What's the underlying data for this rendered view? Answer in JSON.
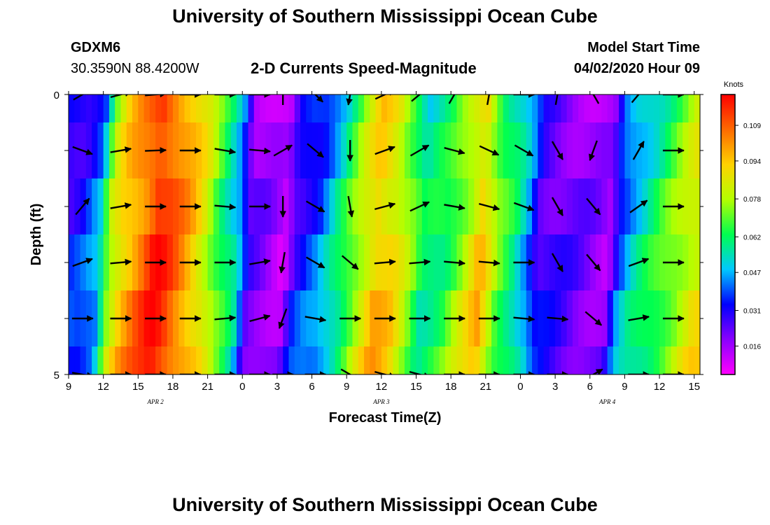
{
  "titles": {
    "top": "University of Southern Mississippi Ocean Cube",
    "bottom": "University of Southern Mississippi Ocean Cube"
  },
  "header": {
    "station": "GDXM6",
    "coords": "30.3590N 88.4200W",
    "subtitle": "2-D Currents Speed-Magnitude",
    "model_label": "Model Start Time",
    "model_time": "04/02/2020 Hour 09"
  },
  "chart_data": {
    "type": "heatmap",
    "title": "2-D Currents Speed-Magnitude",
    "xlabel": "Forecast Time(Z)",
    "ylabel": "Depth (ft)",
    "x_ticks": [
      "9",
      "12",
      "15",
      "18",
      "21",
      "0",
      "3",
      "6",
      "9",
      "12",
      "15",
      "18",
      "21",
      "0",
      "3",
      "6",
      "9",
      "12",
      "15"
    ],
    "x_hours": [
      9,
      12,
      15,
      18,
      21,
      24,
      27,
      30,
      33,
      36,
      39,
      42,
      45,
      48,
      51,
      54,
      57,
      60,
      63
    ],
    "date_labels": [
      {
        "label": "APR 2",
        "hour": 16.5
      },
      {
        "label": "APR 3",
        "hour": 36
      },
      {
        "label": "APR 4",
        "hour": 55.5
      }
    ],
    "y_ticks": [
      "0",
      "5"
    ],
    "ylim": [
      0,
      5
    ],
    "xlim": [
      9,
      63.5
    ],
    "depths": [
      0.25,
      1.0,
      2.0,
      3.0,
      4.0,
      4.75
    ],
    "colorbar": {
      "unit": "Knots",
      "ticks": [
        0.016,
        0.031,
        0.047,
        0.062,
        0.078,
        0.094,
        0.109
      ],
      "tick_labels": [
        "0.016",
        "0.031",
        "0.047",
        "0.062",
        "0.078",
        "0.094",
        "0.109"
      ],
      "range": [
        0.004,
        0.122
      ],
      "colors": [
        "#ff00ff",
        "#8a00ff",
        "#0000ff",
        "#00c8ff",
        "#00ff50",
        "#b4ff00",
        "#ffd200",
        "#ff6a00",
        "#ff0000"
      ]
    },
    "speed_profile": [
      {
        "hour": 9,
        "v": 0.031
      },
      {
        "hour": 10.5,
        "v": 0.034
      },
      {
        "hour": 12,
        "v": 0.045
      },
      {
        "hour": 13,
        "v": 0.078
      },
      {
        "hour": 14,
        "v": 0.092
      },
      {
        "hour": 15,
        "v": 0.1
      },
      {
        "hour": 16,
        "v": 0.108
      },
      {
        "hour": 17,
        "v": 0.118
      },
      {
        "hour": 18,
        "v": 0.112
      },
      {
        "hour": 19.5,
        "v": 0.1
      },
      {
        "hour": 21,
        "v": 0.086
      },
      {
        "hour": 22.5,
        "v": 0.066
      },
      {
        "hour": 24,
        "v": 0.05
      },
      {
        "hour": 25,
        "v": 0.022
      },
      {
        "hour": 26.5,
        "v": 0.018
      },
      {
        "hour": 28,
        "v": 0.012
      },
      {
        "hour": 29,
        "v": 0.03
      },
      {
        "hour": 30,
        "v": 0.036
      },
      {
        "hour": 31,
        "v": 0.04
      },
      {
        "hour": 33,
        "v": 0.06
      },
      {
        "hour": 34.5,
        "v": 0.078
      },
      {
        "hour": 36,
        "v": 0.094
      },
      {
        "hour": 37.5,
        "v": 0.088
      },
      {
        "hour": 39,
        "v": 0.072
      },
      {
        "hour": 40,
        "v": 0.058
      },
      {
        "hour": 42,
        "v": 0.064
      },
      {
        "hour": 44,
        "v": 0.082
      },
      {
        "hour": 45,
        "v": 0.094
      },
      {
        "hour": 46.5,
        "v": 0.07
      },
      {
        "hour": 48,
        "v": 0.058
      },
      {
        "hour": 49,
        "v": 0.046
      },
      {
        "hour": 50,
        "v": 0.028
      },
      {
        "hour": 52,
        "v": 0.024
      },
      {
        "hour": 54,
        "v": 0.02
      },
      {
        "hour": 56,
        "v": 0.016
      },
      {
        "hour": 57,
        "v": 0.04
      },
      {
        "hour": 58,
        "v": 0.05
      },
      {
        "hour": 60,
        "v": 0.062
      },
      {
        "hour": 61.5,
        "v": 0.072
      },
      {
        "hour": 63,
        "v": 0.082
      },
      {
        "hour": 63.5,
        "v": 0.085
      }
    ],
    "vector_hours": [
      10.2,
      13.5,
      16.5,
      19.5,
      22.5,
      25.5,
      27.5,
      30.3,
      33.3,
      36.3,
      39.3,
      42.3,
      45.3,
      48.3,
      51.2,
      54.3,
      58.2,
      61.2
    ],
    "vector_depths": [
      0.0,
      1.0,
      2.0,
      3.0,
      4.0,
      5.0
    ],
    "vectors_deg": [
      [
        -30,
        -15,
        -5,
        0,
        0,
        0,
        -90,
        45,
        100,
        -25,
        -40,
        -60,
        -80,
        0,
        -80,
        -120,
        -50,
        0
      ],
      [
        20,
        -10,
        -2,
        0,
        10,
        5,
        -30,
        40,
        90,
        -20,
        -30,
        15,
        25,
        30,
        60,
        110,
        -60,
        0
      ],
      [
        -50,
        -10,
        0,
        0,
        5,
        0,
        90,
        30,
        80,
        -15,
        -25,
        10,
        15,
        20,
        60,
        50,
        -35,
        0
      ],
      [
        -20,
        -5,
        0,
        0,
        0,
        -10,
        100,
        30,
        40,
        -5,
        -5,
        5,
        5,
        0,
        60,
        50,
        -20,
        0
      ],
      [
        0,
        0,
        0,
        0,
        -5,
        -15,
        110,
        10,
        0,
        0,
        0,
        0,
        0,
        5,
        5,
        40,
        -10,
        0
      ],
      [
        10,
        0,
        0,
        0,
        0,
        0,
        0,
        0,
        30,
        15,
        15,
        0,
        0,
        0,
        0,
        -30,
        0,
        0
      ]
    ]
  }
}
